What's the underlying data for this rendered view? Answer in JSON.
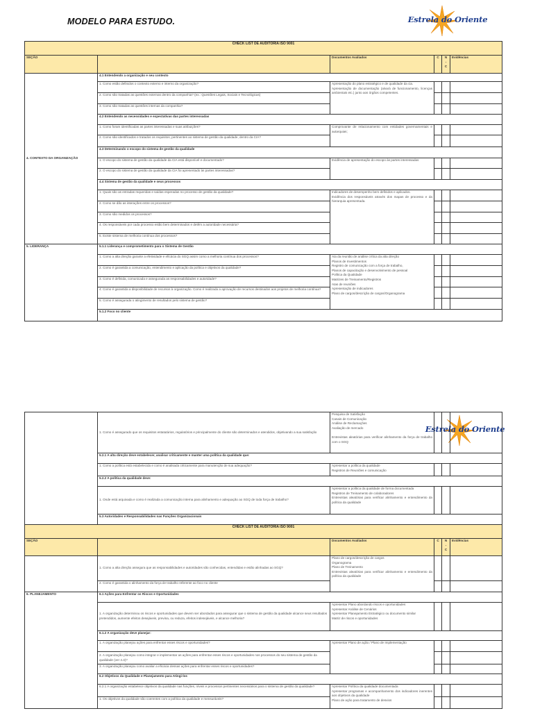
{
  "document": {
    "title": "MODELO PARA ESTUDO.",
    "logo_text": "Estrela do Oriente",
    "brand_colors": {
      "header_fill": "#fde9a9",
      "logo_blue": "#1f3f8f",
      "logo_star": "#f5a623"
    }
  },
  "tables": [
    {
      "title": "CHECK LIST DE AUDITORIA ISO 9001",
      "header": {
        "secao": "SEÇÃO",
        "documentos": "Documentos Avaliados",
        "c": "C",
        "nc": [
          "N",
          "-",
          "C"
        ],
        "evidencias": "Evidências"
      },
      "sections": [
        {
          "label": "4. CONTEXTO DA ORGANIZAÇÃO",
          "groups": [
            {
              "heading": "4.1 Entendendo a organização e seu contexto",
              "questions": [
                "1. Como estão definidos o contexto externo e interno da organização?",
                "2. Como são tratadas as questões externas dentro da companhia? (ex.: Questões Legais, Sociais e Tecnológicas)",
                "3. Como são tratadas as questões internas da companhia?"
              ],
              "docs": [
                "Apresentação do plano estratégico e de qualidade da cia.",
                "Apresentação de documentação (alvará de funcionamento, licenças ambientais etc.) junto aos órgãos competentes."
              ]
            },
            {
              "heading": "4.2 Entendendo as necessidades e expectativas das partes interessadas",
              "questions": [
                "1. Como foram identificadas as partes interessadas e suas atribuições?",
                "2. Como são identificados e tratados os requisitos, pertinentes ao sistema de gestão da qualidade, dentro da CIA?"
              ],
              "docs": [
                "Comprovante de relacionamento com entidades governamentais e autarquias;"
              ]
            },
            {
              "heading": "4.3 Determinando o escopo do sistema de gestão da qualidade",
              "questions": [
                "1. O escopo do sistema de gestão da qualidade da CIA está disponível e documentado?",
                "2. O escopo do sistema de gestão da qualidade da CIA foi apresentado às partes interessadas?"
              ],
              "docs": [
                "Evidência de apresentação do escopo às partes interessadas"
              ]
            },
            {
              "heading": "4.4 Sistema de gestão da qualidade e seus processos",
              "questions": [
                "1. Quais são as entradas requeridas e saídas esperadas no processo de gestão da qualidade?",
                "2. Como se dão as interações entre os processos?",
                "3. Como são medidos os processos?",
                "4. Os responsáveis por cada processo estão bem determinados e detêm a autoridade necessária?",
                "5. Existe sistema de melhoria contínua dos processos?"
              ],
              "docs": [
                "Indicadores de desempenho bem definidos e aplicados.",
                "Evidência dos responsáveis através dos mapas de processo e da hierarquia apresentada."
              ]
            }
          ]
        },
        {
          "label": "5. LIDERANÇA",
          "groups": [
            {
              "heading": "5.1.1 Liderança e comprometimento para o Sistema de Gestão",
              "questions": [
                "1. Como a alta direção garante a efetividade e eficácia do SGQ assim como a melhoria contínua dos processos?",
                "2. Como é garantida a comunicação, entendimento e aplicação da política e objetivos da qualidade?",
                "3. Como é definida, comunicada e assegurada as responsabilidades e autoridade?",
                "4. Como é garantida a disponibilidade de recursos à organização. Como é realizada a aprovação de recursos destinados aos projetos de melhoria contínua?",
                "5. Como é assegurada o atingimento de resultados pelo sistema de gestão?"
              ],
              "docs": [
                "Ata da reunião de análise crítica da alta direção",
                "Planos de Investimentos",
                "Registro de comunicação com a força de trabalho,",
                "Planos de capacitação e desenvolvimento de pessoal",
                "Política da Qualidade",
                "Matrizes de Treinamento/Registros",
                "Atas de reuniões",
                "Apresentação de indicadores",
                "Plano de cargos/descrição de cargos/Organograma"
              ]
            },
            {
              "heading": "5.1.2 Foco no cliente",
              "questions": [],
              "docs": []
            }
          ]
        }
      ]
    },
    {
      "title": null,
      "header": null,
      "sections": [
        {
          "label": "",
          "groups": [
            {
              "heading": null,
              "questions": [
                "1. Como é assegurado que os requisitos estatutários, regulatórios e principalmente do cliente são determinados e atendidos, objetivando a sua satisfação"
              ],
              "docs": [
                "Pesquisa de Satisfação",
                "Canais de Comunicação",
                "Análise de Reclamações",
                "Avaliação de mercado",
                "",
                "Entrevistas aleatórias para verificar alinhamento da força de trabalho com o SGQ"
              ]
            },
            {
              "heading": "5.2.1 A alta direção deve estabelecer, analisar criticamente e manter uma política da qualidade que:",
              "questions": [
                "1. Como a política está estabelecida e como é analisada criticamente para manutenção de sua adequação?"
              ],
              "docs": [
                "Apresentar a política da qualidade",
                "Registros de Reuniões e comunicação"
              ]
            },
            {
              "heading": "5.2.2 A política da qualidade deve:",
              "questions": [
                "1. Onde está arquivada e como é realizada a comunicação interna para alinhamento e adequação ao SGQ de toda força de trabalho?"
              ],
              "docs": [
                "Apresentar a política da qualidade de forma documentada",
                "Registros de Treinamento de colaboradores",
                "Entrevistas aleatórias para verificar alinhamento e entendimento da política da qualidade"
              ]
            },
            {
              "heading": "5.3 Autoridades e Responsabilidades nas Funções Organizacionais",
              "questions": [],
              "docs": []
            }
          ]
        }
      ]
    },
    {
      "title": "CHECK LIST DE AUDITORIA ISO 9001",
      "header": {
        "secao": "SEÇÃO",
        "documentos": "Documentos Avaliados",
        "c": "C",
        "nc": [
          "N",
          "-",
          "C"
        ],
        "evidencias": "Evidências"
      },
      "sections": [
        {
          "label": "",
          "groups": [
            {
              "heading": null,
              "questions": [
                "1. Como a alta direção assegura que as responsabilidades e autoridades são conhecidas, entendidas e estão alinhadas ao SGQ?",
                "2. Como é garantida o alinhamento da força de trabalho referente ao foco no cliente"
              ],
              "docs": [
                "Plano de cargos/descrição de cargos",
                "Organograma",
                "Plano de Treinamento",
                "Entrevistas aleatórias para verificar alinhamento e entendimento da política da qualidade"
              ]
            }
          ]
        },
        {
          "label": "6. PLANEJAMENTO",
          "groups": [
            {
              "heading": "6.1 Ações para Enfrentar os Riscos e Oportunidades",
              "questions": [
                "1. A organização determinou os riscos e oportunidades que devem ser abordados para assegurar que o sistema de gestão da qualidade alcance seus resultados pretendidos, aumente efeitos desejáveis, previna, ou reduza, efeitos indesejáveis, e alcance melhoria?"
              ],
              "docs": [
                "Apresentar Plano abordando riscos e oportunidades",
                "Apresentar Análise de Cenários",
                "Apresentar Planejamento Estratégico ou documento similar",
                "Matriz de riscos e oportunidades"
              ]
            },
            {
              "heading": "6.1.2 A organização deve planejar:",
              "questions": [
                "1. A organização planejou ações para enfrentar esses riscos e oportunidades?",
                "2. A organização planejou como integrar e implementar as ações para enfrentar esses riscos e oportunidades nos processos do seu sistema de gestão da qualidade (ver 4.4)?",
                "3. A organização planejou como avaliar a eficácia dessas ações para enfrentar esses riscos e oportunidades?"
              ],
              "docs": [
                "Apresentar Plano de ação / Plano de Implementação"
              ]
            },
            {
              "heading": "6.2 Objetivos da Qualidade e Planejamento para Atingi-los",
              "questions": [
                "6.2.1 A organização estabelece objetivos da qualidade nas funções, níveis e processos pertinentes necessários para o sistema de gestão da qualidade?",
                "1. Os objetivos da qualidade são coerentes com a política da qualidade e mensuráveis?"
              ],
              "docs": [
                "Apresentar Política da qualidade documentada",
                "Apresentar programas e acompanhamento dos indicadores inerentes aos objetivos da qualidade",
                "Plano de ação para tratamento de desvios"
              ]
            }
          ]
        }
      ]
    }
  ]
}
